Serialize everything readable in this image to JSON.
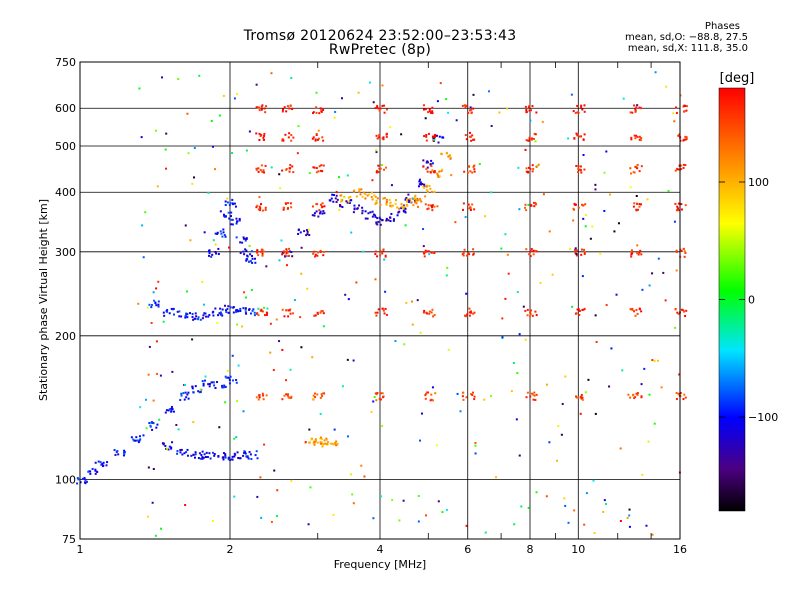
{
  "header": {
    "title_line1": "Tromsø 20120624 23:52:00–23:53:43",
    "title_line2": "RwPretec (8p)",
    "stats_heading": "Phases",
    "stats_o": "mean, sd,O: −88.8, 27.5",
    "stats_x": "mean, sd,X: 111.8, 35.0"
  },
  "colorbar": {
    "label": "[deg]",
    "ticks": [
      "100",
      "0",
      "−100"
    ],
    "tick_values": [
      100,
      0,
      -100
    ],
    "range": [
      -180,
      180
    ]
  },
  "chart_data": {
    "type": "scatter",
    "xlabel": "Frequency [MHz]",
    "ylabel": "Stationary phase Virtual Height [km]",
    "xscale": "log",
    "yscale": "log",
    "xlim": [
      1,
      16
    ],
    "ylim": [
      75,
      750
    ],
    "xticks": [
      1,
      2,
      4,
      6,
      8,
      10,
      16
    ],
    "xtick_labels": [
      "1",
      "2",
      "4",
      "6",
      "8",
      "10",
      "16"
    ],
    "yticks": [
      75,
      100,
      200,
      300,
      400,
      500,
      600,
      750
    ],
    "ytick_labels": [
      "75",
      "100",
      "200",
      "300",
      "400",
      "500",
      "600",
      "750"
    ],
    "grid": true,
    "color_scale": "phase",
    "traces": [
      {
        "x": [
          1.0,
          1.05,
          1.1,
          1.2,
          1.3,
          1.4,
          1.5,
          1.6,
          1.7,
          1.8,
          1.9,
          2.0
        ],
        "y": [
          100,
          104,
          108,
          115,
          122,
          130,
          140,
          150,
          155,
          160,
          158,
          162
        ],
        "phase": -100
      },
      {
        "x": [
          1.5,
          1.6,
          1.7,
          1.8,
          1.9,
          2.0,
          2.1,
          2.2
        ],
        "y": [
          118,
          114,
          113,
          113,
          112,
          112,
          113,
          113
        ],
        "phase": -105
      },
      {
        "x": [
          1.4,
          1.5,
          1.6,
          1.7,
          1.8,
          1.9,
          2.0,
          2.1,
          2.2
        ],
        "y": [
          235,
          225,
          222,
          220,
          222,
          225,
          228,
          227,
          226
        ],
        "phase": -100
      },
      {
        "x": [
          1.85,
          1.9,
          1.95,
          2.0,
          2.05,
          2.1,
          2.15,
          2.2
        ],
        "y": [
          300,
          330,
          360,
          380,
          350,
          320,
          300,
          290
        ],
        "phase": -100
      },
      {
        "x": [
          2.6,
          2.8,
          3.0,
          3.2,
          3.4,
          3.6,
          3.8,
          4.0,
          4.2,
          4.4,
          4.6,
          4.8,
          5.0,
          5.2
        ],
        "y": [
          300,
          330,
          360,
          390,
          380,
          370,
          360,
          350,
          355,
          370,
          390,
          420,
          460,
          520
        ],
        "phase": -120
      },
      {
        "x": [
          3.4,
          3.6,
          3.8,
          4.0,
          4.2,
          4.4,
          4.6,
          4.8,
          5.0,
          5.2,
          5.4
        ],
        "y": [
          390,
          400,
          395,
          385,
          380,
          378,
          382,
          390,
          410,
          440,
          480
        ],
        "phase": 110
      },
      {
        "x": [
          2.9,
          3.0,
          3.1,
          3.2
        ],
        "y": [
          120,
          120,
          121,
          120
        ],
        "phase": 110
      },
      {
        "x": [
          2.3,
          2.6,
          3.0,
          4.0,
          5.0,
          6.0,
          8.0,
          10.0,
          13.0,
          16.0
        ],
        "y": [
          600,
          600,
          600,
          600,
          600,
          600,
          600,
          600,
          600,
          600
        ],
        "phase": 170
      },
      {
        "x": [
          2.3,
          2.6,
          3.0,
          4.0,
          5.0,
          6.0,
          8.0,
          10.0,
          13.0,
          16.0
        ],
        "y": [
          525,
          525,
          525,
          525,
          525,
          525,
          525,
          525,
          525,
          525
        ],
        "phase": 170
      },
      {
        "x": [
          2.3,
          2.6,
          3.0,
          4.0,
          5.0,
          6.0,
          8.0,
          10.0,
          13.0,
          16.0
        ],
        "y": [
          450,
          450,
          450,
          450,
          450,
          450,
          450,
          450,
          450,
          450
        ],
        "phase": 160
      },
      {
        "x": [
          2.3,
          2.6,
          3.0,
          5.0,
          6.0,
          8.0,
          10.0,
          13.0,
          16.0
        ],
        "y": [
          375,
          375,
          375,
          375,
          375,
          375,
          375,
          375,
          375
        ],
        "phase": 160
      },
      {
        "x": [
          2.3,
          2.6,
          3.0,
          4.0,
          5.0,
          6.0,
          8.0,
          10.0,
          13.0,
          16.0
        ],
        "y": [
          300,
          300,
          300,
          300,
          300,
          300,
          300,
          300,
          300,
          300
        ],
        "phase": 160
      },
      {
        "x": [
          2.3,
          2.6,
          3.0,
          4.0,
          5.0,
          6.0,
          8.0,
          10.0,
          13.0,
          16.0
        ],
        "y": [
          225,
          225,
          225,
          225,
          225,
          225,
          225,
          225,
          225,
          225
        ],
        "phase": 160
      },
      {
        "x": [
          2.3,
          2.6,
          3.0,
          4.0,
          5.0,
          6.0,
          8.0,
          10.0,
          13.0,
          16.0
        ],
        "y": [
          150,
          150,
          150,
          150,
          150,
          150,
          150,
          150,
          150,
          150
        ],
        "phase": 150
      }
    ]
  }
}
